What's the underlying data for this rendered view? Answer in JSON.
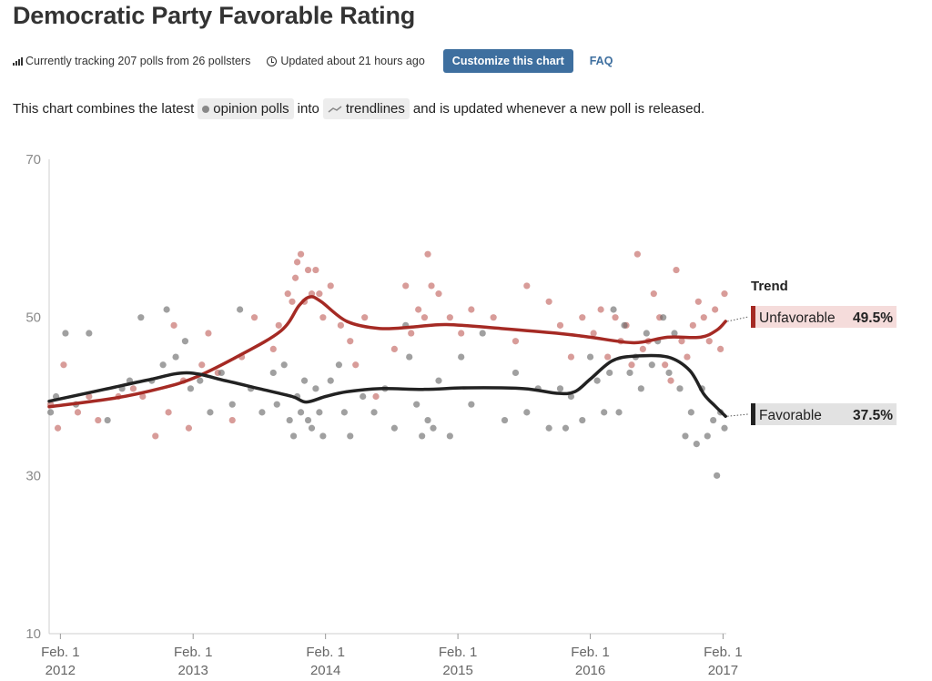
{
  "header": {
    "title": "Democratic Party Favorable Rating",
    "tracking": "Currently tracking 207 polls from 26 pollsters",
    "updated": "Updated about 21 hours ago",
    "customize_label": "Customize this chart",
    "faq_label": "FAQ"
  },
  "description": {
    "prefix": "This chart combines the latest",
    "chip_polls": "opinion polls",
    "middle": "into",
    "chip_trend": "trendlines",
    "suffix": "and is updated whenever a new poll is released."
  },
  "chart_data": {
    "type": "scatter",
    "x_axis": {
      "type": "date",
      "range": [
        "2012-01-01",
        "2017-02-10"
      ],
      "ticks": [
        {
          "date": "2012-02-01",
          "line1": "Feb. 1",
          "line2": "2012"
        },
        {
          "date": "2013-02-01",
          "line1": "Feb. 1",
          "line2": "2013"
        },
        {
          "date": "2014-02-01",
          "line1": "Feb. 1",
          "line2": "2014"
        },
        {
          "date": "2015-02-01",
          "line1": "Feb. 1",
          "line2": "2015"
        },
        {
          "date": "2016-02-01",
          "line1": "Feb. 1",
          "line2": "2016"
        },
        {
          "date": "2017-02-01",
          "line1": "Feb. 1",
          "line2": "2017"
        }
      ]
    },
    "y_axis": {
      "range": [
        10,
        70
      ],
      "ticks": [
        "70",
        "50",
        "30",
        "10"
      ]
    },
    "legend": {
      "title": "Trend",
      "position": "right",
      "entries": [
        {
          "name": "Unfavorable",
          "value": "49.5%",
          "color": "#a52a24",
          "bg": "#f5dcdb"
        },
        {
          "name": "Favorable",
          "value": "37.5%",
          "color": "#222222",
          "bg": "#e2e2e2"
        }
      ]
    },
    "series": [
      {
        "name": "Unfavorable",
        "color": "#a52a24",
        "dot_color": "#c0605b",
        "trend": [
          [
            "2012-01-01",
            38.7
          ],
          [
            "2012-07-01",
            39.8
          ],
          [
            "2012-11-01",
            41.0
          ],
          [
            "2013-02-01",
            42.3
          ],
          [
            "2013-06-01",
            45.0
          ],
          [
            "2013-10-01",
            48.3
          ],
          [
            "2013-11-20",
            51.5
          ],
          [
            "2013-12-20",
            52.6
          ],
          [
            "2014-01-20",
            52.0
          ],
          [
            "2014-04-01",
            49.5
          ],
          [
            "2014-07-01",
            48.6
          ],
          [
            "2014-10-01",
            48.8
          ],
          [
            "2015-01-01",
            49.1
          ],
          [
            "2015-06-01",
            48.6
          ],
          [
            "2015-11-01",
            48.0
          ],
          [
            "2016-02-01",
            47.5
          ],
          [
            "2016-06-01",
            46.8
          ],
          [
            "2016-09-01",
            47.5
          ],
          [
            "2016-12-01",
            47.5
          ],
          [
            "2017-01-15",
            48.4
          ],
          [
            "2017-02-08",
            49.5
          ]
        ],
        "polls": [
          [
            "2012-01-05",
            39
          ],
          [
            "2012-01-25",
            36
          ],
          [
            "2012-02-10",
            44
          ],
          [
            "2012-03-20",
            38
          ],
          [
            "2012-04-20",
            40
          ],
          [
            "2012-05-15",
            37
          ],
          [
            "2012-07-10",
            40
          ],
          [
            "2012-08-20",
            41
          ],
          [
            "2012-09-15",
            40
          ],
          [
            "2012-10-20",
            35
          ],
          [
            "2012-11-25",
            38
          ],
          [
            "2012-12-10",
            49
          ],
          [
            "2013-01-05",
            42
          ],
          [
            "2013-01-20",
            36
          ],
          [
            "2013-02-25",
            44
          ],
          [
            "2013-03-15",
            48
          ],
          [
            "2013-04-10",
            43
          ],
          [
            "2013-05-20",
            37
          ],
          [
            "2013-06-15",
            45
          ],
          [
            "2013-07-20",
            50
          ],
          [
            "2013-09-10",
            46
          ],
          [
            "2013-09-25",
            49
          ],
          [
            "2013-10-20",
            53
          ],
          [
            "2013-11-01",
            52
          ],
          [
            "2013-11-10",
            55
          ],
          [
            "2013-11-15",
            57
          ],
          [
            "2013-11-25",
            58
          ],
          [
            "2013-12-05",
            52
          ],
          [
            "2013-12-15",
            56
          ],
          [
            "2013-12-25",
            53
          ],
          [
            "2014-01-05",
            56
          ],
          [
            "2014-01-15",
            53
          ],
          [
            "2014-01-25",
            50
          ],
          [
            "2014-02-15",
            54
          ],
          [
            "2014-03-15",
            49
          ],
          [
            "2014-04-10",
            47
          ],
          [
            "2014-04-25",
            44
          ],
          [
            "2014-05-20",
            50
          ],
          [
            "2014-06-20",
            40
          ],
          [
            "2014-08-10",
            46
          ],
          [
            "2014-09-10",
            54
          ],
          [
            "2014-09-25",
            48
          ],
          [
            "2014-10-15",
            51
          ],
          [
            "2014-11-01",
            50
          ],
          [
            "2014-11-10",
            58
          ],
          [
            "2014-11-20",
            54
          ],
          [
            "2014-12-10",
            53
          ],
          [
            "2015-01-10",
            50
          ],
          [
            "2015-02-10",
            48
          ],
          [
            "2015-03-10",
            51
          ],
          [
            "2015-05-10",
            50
          ],
          [
            "2015-07-10",
            47
          ],
          [
            "2015-08-10",
            54
          ],
          [
            "2015-10-10",
            52
          ],
          [
            "2015-11-10",
            49
          ],
          [
            "2015-12-10",
            45
          ],
          [
            "2016-01-10",
            50
          ],
          [
            "2016-02-10",
            48
          ],
          [
            "2016-03-01",
            51
          ],
          [
            "2016-03-20",
            45
          ],
          [
            "2016-04-10",
            50
          ],
          [
            "2016-04-25",
            47
          ],
          [
            "2016-05-10",
            49
          ],
          [
            "2016-05-25",
            44
          ],
          [
            "2016-06-10",
            58
          ],
          [
            "2016-06-25",
            46
          ],
          [
            "2016-07-10",
            47
          ],
          [
            "2016-07-25",
            53
          ],
          [
            "2016-08-10",
            50
          ],
          [
            "2016-08-25",
            44
          ],
          [
            "2016-09-10",
            42
          ],
          [
            "2016-09-25",
            56
          ],
          [
            "2016-10-10",
            47
          ],
          [
            "2016-10-25",
            45
          ],
          [
            "2016-11-10",
            49
          ],
          [
            "2016-11-25",
            52
          ],
          [
            "2016-12-10",
            50
          ],
          [
            "2016-12-25",
            47
          ],
          [
            "2017-01-10",
            51
          ],
          [
            "2017-01-25",
            46
          ],
          [
            "2017-02-05",
            53
          ]
        ]
      },
      {
        "name": "Favorable",
        "color": "#222222",
        "dot_color": "#666666",
        "trend": [
          [
            "2012-01-01",
            39.4
          ],
          [
            "2012-06-01",
            40.9
          ],
          [
            "2012-10-01",
            42.1
          ],
          [
            "2013-01-15",
            43.0
          ],
          [
            "2013-05-01",
            42.0
          ],
          [
            "2013-08-01",
            41.0
          ],
          [
            "2013-11-01",
            40.0
          ],
          [
            "2013-12-10",
            39.3
          ],
          [
            "2014-02-01",
            40.0
          ],
          [
            "2014-04-01",
            40.6
          ],
          [
            "2014-07-01",
            41.0
          ],
          [
            "2014-11-01",
            40.9
          ],
          [
            "2015-03-01",
            41.1
          ],
          [
            "2015-08-01",
            41.0
          ],
          [
            "2015-11-01",
            40.4
          ],
          [
            "2015-12-20",
            40.6
          ],
          [
            "2016-02-01",
            42.2
          ],
          [
            "2016-04-01",
            44.5
          ],
          [
            "2016-06-01",
            45.1
          ],
          [
            "2016-09-01",
            45.0
          ],
          [
            "2016-11-01",
            43.3
          ],
          [
            "2016-12-10",
            40.3
          ],
          [
            "2017-01-10",
            38.8
          ],
          [
            "2017-02-08",
            37.5
          ]
        ],
        "polls": [
          [
            "2012-01-05",
            38
          ],
          [
            "2012-01-20",
            40
          ],
          [
            "2012-02-15",
            48
          ],
          [
            "2012-03-15",
            39
          ],
          [
            "2012-04-20",
            48
          ],
          [
            "2012-06-10",
            37
          ],
          [
            "2012-07-20",
            41
          ],
          [
            "2012-08-10",
            42
          ],
          [
            "2012-09-10",
            50
          ],
          [
            "2012-10-10",
            42
          ],
          [
            "2012-11-10",
            44
          ],
          [
            "2012-11-20",
            51
          ],
          [
            "2012-12-15",
            45
          ],
          [
            "2013-01-10",
            47
          ],
          [
            "2013-01-25",
            41
          ],
          [
            "2013-02-20",
            42
          ],
          [
            "2013-03-20",
            38
          ],
          [
            "2013-04-20",
            43
          ],
          [
            "2013-05-20",
            39
          ],
          [
            "2013-06-10",
            51
          ],
          [
            "2013-07-10",
            41
          ],
          [
            "2013-08-10",
            38
          ],
          [
            "2013-09-10",
            43
          ],
          [
            "2013-09-20",
            39
          ],
          [
            "2013-10-10",
            44
          ],
          [
            "2013-10-25",
            37
          ],
          [
            "2013-11-05",
            35
          ],
          [
            "2013-11-15",
            40
          ],
          [
            "2013-11-25",
            38
          ],
          [
            "2013-12-05",
            42
          ],
          [
            "2013-12-15",
            37
          ],
          [
            "2013-12-25",
            36
          ],
          [
            "2014-01-05",
            41
          ],
          [
            "2014-01-15",
            38
          ],
          [
            "2014-01-25",
            35
          ],
          [
            "2014-02-15",
            42
          ],
          [
            "2014-03-10",
            44
          ],
          [
            "2014-03-25",
            38
          ],
          [
            "2014-04-10",
            35
          ],
          [
            "2014-05-15",
            40
          ],
          [
            "2014-06-15",
            38
          ],
          [
            "2014-07-15",
            41
          ],
          [
            "2014-08-10",
            36
          ],
          [
            "2014-09-10",
            49
          ],
          [
            "2014-09-20",
            45
          ],
          [
            "2014-10-10",
            39
          ],
          [
            "2014-10-25",
            35
          ],
          [
            "2014-11-10",
            37
          ],
          [
            "2014-11-25",
            36
          ],
          [
            "2014-12-10",
            42
          ],
          [
            "2015-01-10",
            35
          ],
          [
            "2015-02-10",
            45
          ],
          [
            "2015-03-10",
            39
          ],
          [
            "2015-04-10",
            48
          ],
          [
            "2015-06-10",
            37
          ],
          [
            "2015-07-10",
            43
          ],
          [
            "2015-08-10",
            38
          ],
          [
            "2015-09-10",
            41
          ],
          [
            "2015-10-10",
            36
          ],
          [
            "2015-11-10",
            41
          ],
          [
            "2015-11-25",
            36
          ],
          [
            "2015-12-10",
            40
          ],
          [
            "2016-01-10",
            37
          ],
          [
            "2016-02-01",
            45
          ],
          [
            "2016-02-20",
            42
          ],
          [
            "2016-03-10",
            38
          ],
          [
            "2016-03-25",
            43
          ],
          [
            "2016-04-05",
            51
          ],
          [
            "2016-04-20",
            38
          ],
          [
            "2016-05-05",
            49
          ],
          [
            "2016-05-20",
            43
          ],
          [
            "2016-06-05",
            45
          ],
          [
            "2016-06-20",
            41
          ],
          [
            "2016-07-05",
            48
          ],
          [
            "2016-07-20",
            44
          ],
          [
            "2016-08-05",
            47
          ],
          [
            "2016-08-20",
            50
          ],
          [
            "2016-09-05",
            43
          ],
          [
            "2016-09-20",
            48
          ],
          [
            "2016-10-05",
            41
          ],
          [
            "2016-10-20",
            35
          ],
          [
            "2016-11-05",
            38
          ],
          [
            "2016-11-20",
            34
          ],
          [
            "2016-12-05",
            41
          ],
          [
            "2016-12-20",
            35
          ],
          [
            "2017-01-05",
            37
          ],
          [
            "2017-01-15",
            30
          ],
          [
            "2017-01-25",
            38
          ],
          [
            "2017-02-05",
            36
          ]
        ]
      }
    ]
  }
}
